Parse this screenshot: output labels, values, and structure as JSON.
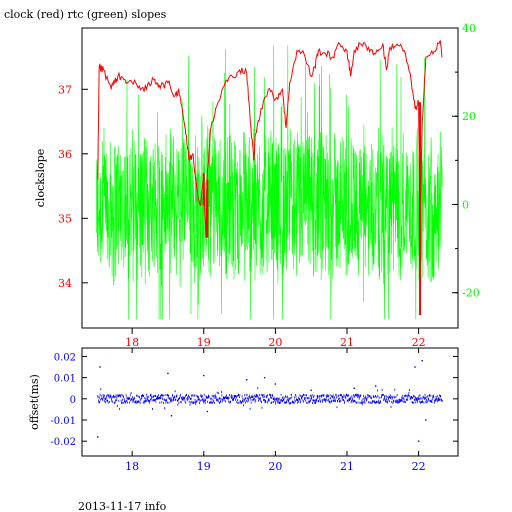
{
  "header": {
    "title": "clock (red) rtc (green) slopes"
  },
  "footer": {
    "info": "2013-11-17 info"
  },
  "colors": {
    "red": "#ff0000",
    "green": "#00ff00",
    "blue": "#0000ff",
    "axis": "#000000"
  },
  "chart_data": [
    {
      "type": "line",
      "title": "clock (red) rtc (green) slopes",
      "xlabel": "",
      "ylabel": "clockslope",
      "xlim": [
        17.3,
        22.55
      ],
      "xticks": [
        18,
        19,
        20,
        21,
        22
      ],
      "ylim": [
        33.3,
        37.95
      ],
      "yticks": [
        34,
        35,
        36,
        37
      ],
      "y2lim": [
        -28,
        40
      ],
      "y2ticks": [
        -20,
        0,
        20,
        40
      ],
      "grid": false,
      "series": [
        {
          "name": "clock",
          "color": "#ff0000",
          "axis": "left",
          "x": [
            17.52,
            17.54,
            17.6,
            17.7,
            17.75,
            17.8,
            17.9,
            18.0,
            18.1,
            18.2,
            18.3,
            18.35,
            18.4,
            18.5,
            18.6,
            18.65,
            18.7,
            18.75,
            18.8,
            18.85,
            18.9,
            18.95,
            19.0,
            19.03,
            19.05,
            19.1,
            19.2,
            19.3,
            19.4,
            19.5,
            19.6,
            19.65,
            19.7,
            19.72,
            19.8,
            19.9,
            20.0,
            20.1,
            20.15,
            20.2,
            20.3,
            20.4,
            20.5,
            20.55,
            20.6,
            20.7,
            20.8,
            20.9,
            21.0,
            21.05,
            21.1,
            21.2,
            21.3,
            21.4,
            21.5,
            21.55,
            21.6,
            21.7,
            21.8,
            21.9,
            21.95,
            22.0,
            22.02,
            22.05,
            22.1,
            22.2,
            22.3,
            22.33
          ],
          "y": [
            35.6,
            37.35,
            37.3,
            37.05,
            37.1,
            37.2,
            37.15,
            37.1,
            37.05,
            37.0,
            37.15,
            37.1,
            37.05,
            37.1,
            36.9,
            37.0,
            36.7,
            36.3,
            35.9,
            36.0,
            35.5,
            35.2,
            35.6,
            34.7,
            35.7,
            36.4,
            36.8,
            37.1,
            37.2,
            37.3,
            37.25,
            36.5,
            35.9,
            36.3,
            36.7,
            37.0,
            36.85,
            37.0,
            36.4,
            37.1,
            37.6,
            37.55,
            37.2,
            37.35,
            37.6,
            37.55,
            37.5,
            37.7,
            37.6,
            37.2,
            37.6,
            37.7,
            37.65,
            37.55,
            37.7,
            37.3,
            37.65,
            37.7,
            37.6,
            37.1,
            36.7,
            36.8,
            34.8,
            36.5,
            37.5,
            37.55,
            37.75,
            37.5
          ]
        },
        {
          "name": "rtc",
          "color": "#00ff00",
          "axis": "right",
          "x": [
            17.5,
            17.6,
            17.8,
            18.0,
            18.2,
            18.4,
            18.6,
            18.8,
            19.0,
            19.2,
            19.4,
            19.6,
            19.8,
            20.0,
            20.2,
            20.4,
            20.6,
            20.8,
            21.0,
            21.2,
            21.4,
            21.6,
            21.8,
            22.0,
            22.2,
            22.33
          ],
          "y": [
            0,
            1,
            -1,
            0,
            1,
            0,
            -1,
            1,
            0,
            0,
            -1,
            1,
            0,
            0,
            1,
            -1,
            0,
            1,
            0,
            -1,
            0,
            1,
            0,
            1,
            0,
            -1
          ]
        }
      ]
    },
    {
      "type": "scatter",
      "title": "",
      "xlabel": "",
      "ylabel": "offset(ms)",
      "xlim": [
        17.3,
        22.55
      ],
      "xticks": [
        18,
        19,
        20,
        21,
        22
      ],
      "ylim": [
        -0.027,
        0.024
      ],
      "yticks": [
        -0.02,
        -0.01,
        0,
        0.01,
        0.02
      ],
      "grid": false,
      "series": [
        {
          "name": "offset",
          "color": "#0000ff",
          "x": [
            17.52,
            17.55,
            18.5,
            18.55,
            19.0,
            19.05,
            19.6,
            19.85,
            20.0,
            20.5,
            21.1,
            21.4,
            21.95,
            22.0,
            22.05,
            22.1
          ],
          "y": [
            -0.018,
            0.015,
            0.012,
            -0.008,
            0.011,
            -0.006,
            0.009,
            0.01,
            0.007,
            0.004,
            0.005,
            0.006,
            0.015,
            -0.02,
            0.018,
            -0.01
          ]
        }
      ]
    }
  ]
}
